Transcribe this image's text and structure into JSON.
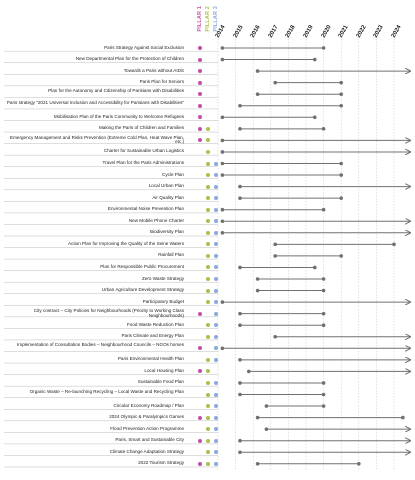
{
  "colors": {
    "pillar1": "#c54fa7",
    "pillar2": "#a8c24a",
    "pillar3": "#8aaad6",
    "line": "#707070",
    "grid": "#cfcfcf"
  },
  "pillars": [
    "PILLAR 1",
    "PILLAR 2",
    "PILLAR 3"
  ],
  "years": [
    "2014",
    "2015",
    "2016",
    "2017",
    "2018",
    "2019",
    "2020",
    "2021",
    "2022",
    "2023",
    "2024"
  ],
  "plans": [
    {
      "label": "Paris Strategy Against Social Exclusion",
      "pillars": [
        1
      ],
      "start": 2014.25,
      "end": 2020.0,
      "ongoing": false
    },
    {
      "label": "New Departmental Plan for the Protection of Children",
      "pillars": [
        1
      ],
      "start": 2014.25,
      "end": 2019.5,
      "ongoing": false
    },
    {
      "label": "Towards a Paris without AIDS",
      "pillars": [
        1
      ],
      "start": 2016.25,
      "end": 2020.0,
      "ongoing": true
    },
    {
      "label": "Paris Plan for Seniors",
      "pillars": [
        1
      ],
      "start": 2017.25,
      "end": 2021.0,
      "ongoing": false
    },
    {
      "label": "Plan for the Autonomy and Citizenship of Parisians with Disabilities",
      "pillars": [
        1
      ],
      "start": 2016.25,
      "end": 2021.0,
      "ongoing": false
    },
    {
      "label": "Paris strategy \"2021 Universal Inclusion and Accessibility for Parisians with Disabilities\"",
      "pillars": [
        1
      ],
      "start": 2015.25,
      "end": 2021.0,
      "ongoing": false
    },
    {
      "label": "Mobilisation Plan of the Paris Community to Welcome Refugees",
      "pillars": [
        1
      ],
      "start": 2014.25,
      "end": 2019.5,
      "ongoing": false
    },
    {
      "label": "Making the Paris of Children and Families",
      "pillars": [
        1,
        2
      ],
      "start": 2015.25,
      "end": 2020.0,
      "ongoing": false
    },
    {
      "label": "Emergency Management and Risks Prevention (Extreme Cold Plan, Heat Wave Plan, etc.)",
      "pillars": [
        1,
        2
      ],
      "start": 2014.25,
      "end": 2024.5,
      "ongoing": true
    },
    {
      "label": "Charter for Sustainable Urban Logistics",
      "pillars": [
        2
      ],
      "start": 2014.25,
      "end": 2019.5,
      "ongoing": true
    },
    {
      "label": "Travel Plan for the Paris Administrations",
      "pillars": [
        2,
        3
      ],
      "start": 2014.25,
      "end": 2021.0,
      "ongoing": false
    },
    {
      "label": "Cycle Plan",
      "pillars": [
        2,
        3
      ],
      "start": 2014.25,
      "end": 2021.0,
      "ongoing": false
    },
    {
      "label": "Local Urban Plan",
      "pillars": [
        2,
        3
      ],
      "start": 2015.25,
      "end": 2024.5,
      "ongoing": true
    },
    {
      "label": "Air Quality Plan",
      "pillars": [
        2,
        3
      ],
      "start": 2015.25,
      "end": 2021.0,
      "ongoing": false
    },
    {
      "label": "Environmental Noise Prevention Plan",
      "pillars": [
        2,
        3
      ],
      "start": 2014.25,
      "end": 2020.0,
      "ongoing": false
    },
    {
      "label": "New Mobile Phone Charter",
      "pillars": [
        2,
        3
      ],
      "start": 2014.25,
      "end": 2020.0,
      "ongoing": true
    },
    {
      "label": "Biodiversity Plan",
      "pillars": [
        2,
        3
      ],
      "start": 2014.25,
      "end": 2024.5,
      "ongoing": true
    },
    {
      "label": "Action Plan for Improving the Quality of the Seine Waters",
      "pillars": [
        2,
        3
      ],
      "start": 2017.25,
      "end": 2024.0,
      "ongoing": false
    },
    {
      "label": "Rainfall Plan",
      "pillars": [
        2,
        3
      ],
      "start": 2017.25,
      "end": 2021.0,
      "ongoing": false
    },
    {
      "label": "Plan for Responsible Public Procurement",
      "pillars": [
        2,
        3
      ],
      "start": 2015.25,
      "end": 2019.5,
      "ongoing": false
    },
    {
      "label": "Zero Waste Strategy",
      "pillars": [
        2,
        3
      ],
      "start": 2016.25,
      "end": 2020.0,
      "ongoing": false
    },
    {
      "label": "Urban Agriculture Development Strategy",
      "pillars": [
        2,
        3
      ],
      "start": 2016.25,
      "end": 2020.0,
      "ongoing": false
    },
    {
      "label": "Participatory Budget",
      "pillars": [
        2,
        3
      ],
      "start": 2014.25,
      "end": 2020.5,
      "ongoing": true
    },
    {
      "label": "City contract – City Policies for Neighbourhoods (Priority to Working Class Neighbourhoods)",
      "pillars": [
        1,
        3
      ],
      "start": 2015.25,
      "end": 2020.0,
      "ongoing": false
    },
    {
      "label": "Food Waste Reduction Plan",
      "pillars": [
        2,
        3
      ],
      "start": 2015.25,
      "end": 2020.0,
      "ongoing": false
    },
    {
      "label": "Paris Climate and Energy Plan",
      "pillars": [
        2,
        3
      ],
      "start": 2017.25,
      "end": 2024.5,
      "ongoing": true
    },
    {
      "label": "Implementation of Consultation Bodies – Neighbourhood Councils – NGOs homes",
      "pillars": [
        1,
        3
      ],
      "start": 2014.25,
      "end": 2021.5,
      "ongoing": true
    },
    {
      "label": "Paris Environmental Health Plan",
      "pillars": [
        2,
        3
      ],
      "start": 2015.25,
      "end": 2020.0,
      "ongoing": true
    },
    {
      "label": "Local Housing Plan",
      "pillars": [
        1,
        2
      ],
      "start": 2015.75,
      "end": 2020.0,
      "ongoing": true
    },
    {
      "label": "Sustainable Food Plan",
      "pillars": [
        2,
        3
      ],
      "start": 2015.25,
      "end": 2020.0,
      "ongoing": false
    },
    {
      "label": "Organic Waste – Re-launching Recycling – Local Waste and Recycling Plan",
      "pillars": [
        2,
        3
      ],
      "start": 2015.25,
      "end": 2020.0,
      "ongoing": false
    },
    {
      "label": "Circular Economy Roadmap / Plan",
      "pillars": [
        2,
        3
      ],
      "start": 2016.75,
      "end": 2020.0,
      "ongoing": false
    },
    {
      "label": "2024 Olympic & Paralympics Games",
      "pillars": [
        1,
        2,
        3
      ],
      "start": 2016.25,
      "end": 2024.5,
      "ongoing": false
    },
    {
      "label": "Flood Prevention Action Programme",
      "pillars": [
        2,
        3
      ],
      "start": 2016.75,
      "end": 2024.5,
      "ongoing": true
    },
    {
      "label": "Paris, Smart and Sustainable City",
      "pillars": [
        1,
        2,
        3
      ],
      "start": 2015.25,
      "end": 2020.0,
      "ongoing": true
    },
    {
      "label": "Climate Change Adaptation Strategy",
      "pillars": [
        2,
        3
      ],
      "start": 2015.25,
      "end": 2024.5,
      "ongoing": true
    },
    {
      "label": "2022 Tourism Strategy",
      "pillars": [
        1,
        2,
        3
      ],
      "start": 2016.25,
      "end": 2022.0,
      "ongoing": false
    }
  ]
}
